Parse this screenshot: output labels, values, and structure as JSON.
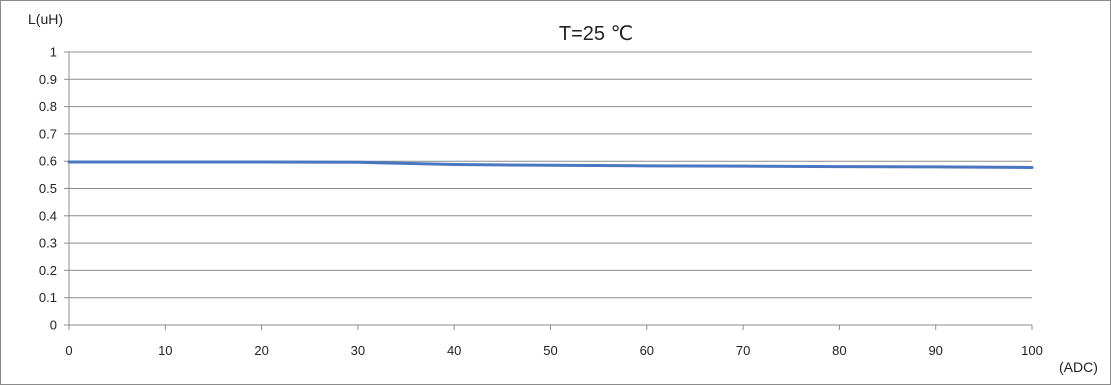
{
  "chart_data": {
    "type": "line",
    "title": "T=25 ℃",
    "ylabel": "L(uH)",
    "xlabel": "(ADC)",
    "xlim": [
      0,
      100
    ],
    "ylim": [
      0,
      1
    ],
    "x_ticks": [
      0,
      10,
      20,
      30,
      40,
      50,
      60,
      70,
      80,
      90,
      100
    ],
    "y_ticks": [
      0,
      0.1,
      0.2,
      0.3,
      0.4,
      0.5,
      0.6,
      0.7,
      0.8,
      0.9,
      1
    ],
    "y_tick_labels": [
      "0",
      "0.1",
      "0.2",
      "0.3",
      "0.4",
      "0.5",
      "0.6",
      "0.7",
      "0.8",
      "0.9",
      "1"
    ],
    "grid": true,
    "legend": "none",
    "series": [
      {
        "color": "#4a76c0",
        "x": [
          0,
          10,
          20,
          30,
          35,
          40,
          50,
          60,
          70,
          80,
          90,
          100
        ],
        "y": [
          0.597,
          0.597,
          0.597,
          0.596,
          0.592,
          0.588,
          0.585,
          0.583,
          0.582,
          0.58,
          0.579,
          0.577
        ]
      }
    ]
  }
}
